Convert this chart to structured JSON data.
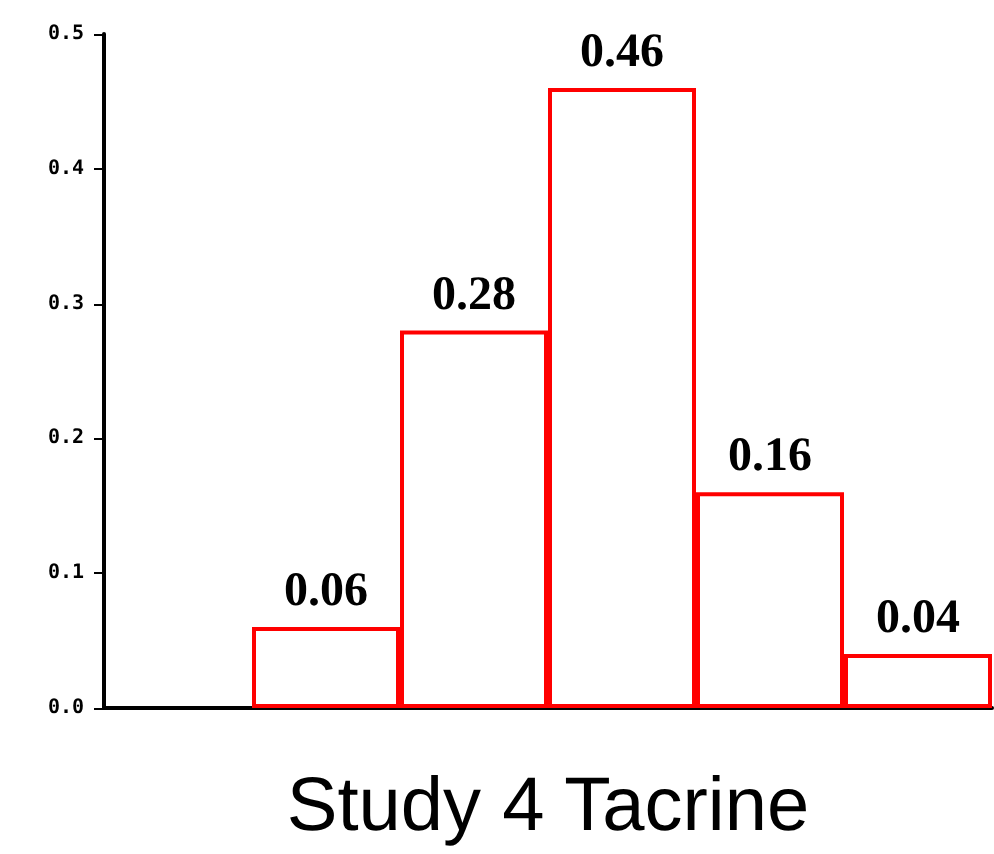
{
  "chart_data": {
    "type": "bar",
    "xlabel": "Study 4 Tacrine",
    "categories": [
      null,
      null,
      null,
      null,
      null,
      null
    ],
    "values": [
      null,
      0.06,
      0.28,
      0.46,
      0.16,
      0.04
    ],
    "color": "#ff0000",
    "ylim": [
      0,
      0.5
    ],
    "yticks": [
      {
        "value": 0,
        "label": "0.0"
      },
      0.1,
      0.2,
      0.3,
      0.4,
      0.5
    ],
    "data_labels": true
  }
}
